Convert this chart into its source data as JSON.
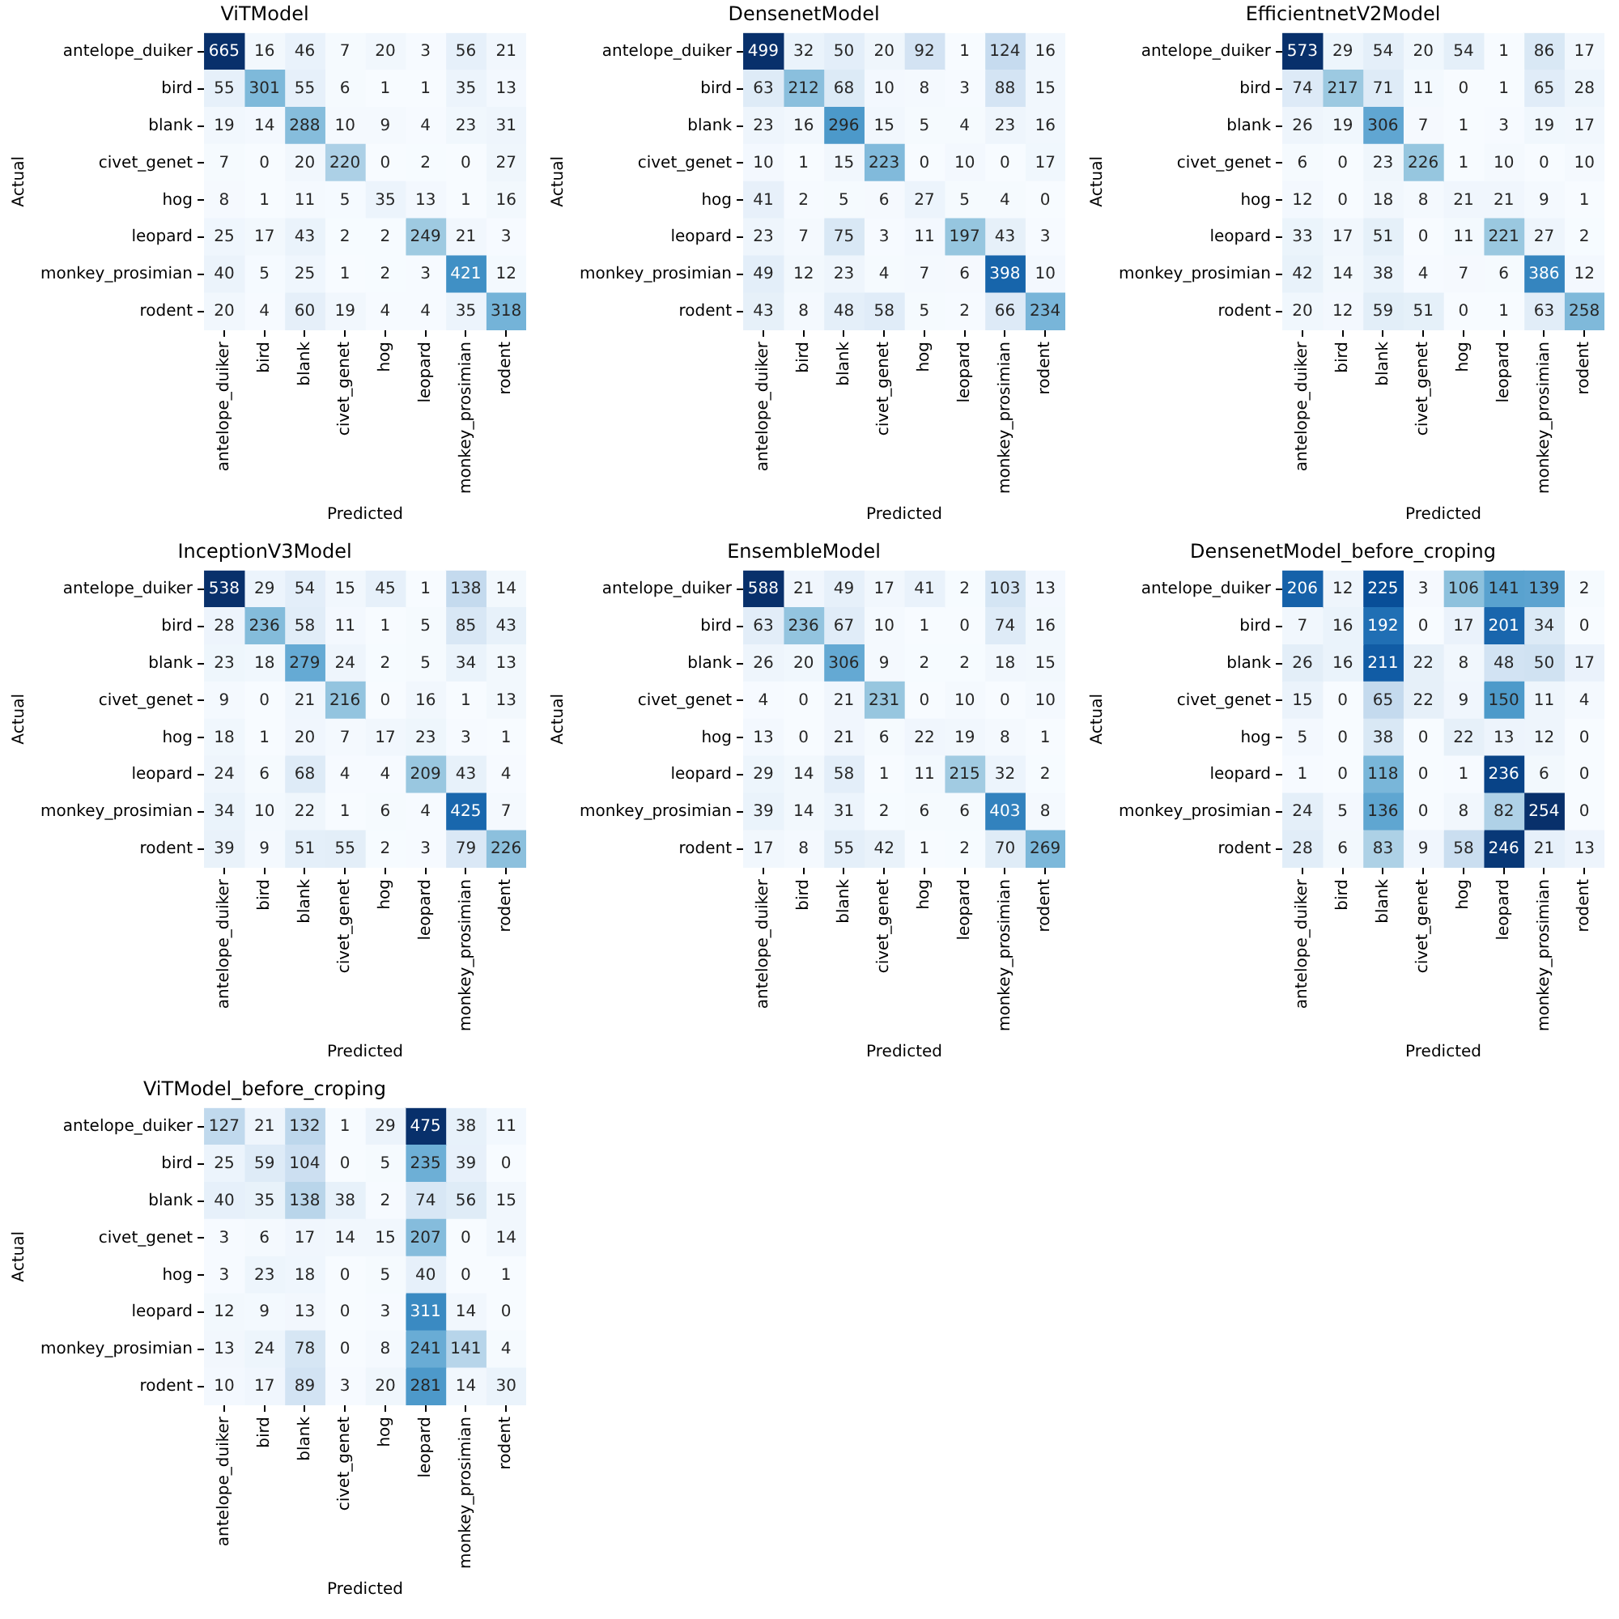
{
  "chart_data": [
    {
      "type": "heatmap",
      "title": "ViTModel",
      "xlabel": "Predicted",
      "ylabel": "Actual",
      "data_labels": true,
      "categories": [
        "antelope_duiker",
        "bird",
        "blank",
        "civet_genet",
        "hog",
        "leopard",
        "monkey_prosimian",
        "rodent"
      ],
      "y_categories": [
        "antelope_duiker",
        "bird",
        "blank",
        "civet_genet",
        "hog",
        "leopard",
        "monkey_prosimian",
        "rodent"
      ],
      "cells": [
        [
          665,
          16,
          46,
          7,
          20,
          3,
          56,
          21
        ],
        [
          55,
          301,
          55,
          6,
          1,
          1,
          35,
          13
        ],
        [
          19,
          14,
          288,
          10,
          9,
          4,
          23,
          31
        ],
        [
          7,
          0,
          20,
          220,
          0,
          2,
          0,
          27
        ],
        [
          8,
          1,
          11,
          5,
          35,
          13,
          1,
          16
        ],
        [
          25,
          17,
          43,
          2,
          2,
          249,
          21,
          3
        ],
        [
          40,
          5,
          25,
          1,
          2,
          3,
          421,
          12
        ],
        [
          20,
          4,
          60,
          19,
          4,
          4,
          35,
          318
        ]
      ]
    },
    {
      "type": "heatmap",
      "title": "DensenetModel",
      "xlabel": "Predicted",
      "ylabel": "Actual",
      "data_labels": true,
      "categories": [
        "antelope_duiker",
        "bird",
        "blank",
        "civet_genet",
        "hog",
        "leopard",
        "monkey_prosimian",
        "rodent"
      ],
      "y_categories": [
        "antelope_duiker",
        "bird",
        "blank",
        "civet_genet",
        "hog",
        "leopard",
        "monkey_prosimian",
        "rodent"
      ],
      "cells": [
        [
          499,
          32,
          50,
          20,
          92,
          1,
          124,
          16
        ],
        [
          63,
          212,
          68,
          10,
          8,
          3,
          88,
          15
        ],
        [
          23,
          16,
          296,
          15,
          5,
          4,
          23,
          16
        ],
        [
          10,
          1,
          15,
          223,
          0,
          10,
          0,
          17
        ],
        [
          41,
          2,
          5,
          6,
          27,
          5,
          4,
          0
        ],
        [
          23,
          7,
          75,
          3,
          11,
          197,
          43,
          3
        ],
        [
          49,
          12,
          23,
          4,
          7,
          6,
          398,
          10
        ],
        [
          43,
          8,
          48,
          58,
          5,
          2,
          66,
          234
        ]
      ]
    },
    {
      "type": "heatmap",
      "title": "EfficientnetV2Model",
      "xlabel": "Predicted",
      "ylabel": "Actual",
      "data_labels": true,
      "categories": [
        "antelope_duiker",
        "bird",
        "blank",
        "civet_genet",
        "hog",
        "leopard",
        "monkey_prosimian",
        "rodent"
      ],
      "y_categories": [
        "antelope_duiker",
        "bird",
        "blank",
        "civet_genet",
        "hog",
        "leopard",
        "monkey_prosimian",
        "rodent"
      ],
      "cells": [
        [
          573,
          29,
          54,
          20,
          54,
          1,
          86,
          17
        ],
        [
          74,
          217,
          71,
          11,
          0,
          1,
          65,
          28
        ],
        [
          26,
          19,
          306,
          7,
          1,
          3,
          19,
          17
        ],
        [
          6,
          0,
          23,
          226,
          1,
          10,
          0,
          10
        ],
        [
          12,
          0,
          18,
          8,
          21,
          21,
          9,
          1
        ],
        [
          33,
          17,
          51,
          0,
          11,
          221,
          27,
          2
        ],
        [
          42,
          14,
          38,
          4,
          7,
          6,
          386,
          12
        ],
        [
          20,
          12,
          59,
          51,
          0,
          1,
          63,
          258
        ]
      ]
    },
    {
      "type": "heatmap",
      "title": "InceptionV3Model",
      "xlabel": "Predicted",
      "ylabel": "Actual",
      "data_labels": true,
      "categories": [
        "antelope_duiker",
        "bird",
        "blank",
        "civet_genet",
        "hog",
        "leopard",
        "monkey_prosimian",
        "rodent"
      ],
      "y_categories": [
        "antelope_duiker",
        "bird",
        "blank",
        "civet_genet",
        "hog",
        "leopard",
        "monkey_prosimian",
        "rodent"
      ],
      "cells": [
        [
          538,
          29,
          54,
          15,
          45,
          1,
          138,
          14
        ],
        [
          28,
          236,
          58,
          11,
          1,
          5,
          85,
          43
        ],
        [
          23,
          18,
          279,
          24,
          2,
          5,
          34,
          13
        ],
        [
          9,
          0,
          21,
          216,
          0,
          16,
          1,
          13
        ],
        [
          18,
          1,
          20,
          7,
          17,
          23,
          3,
          1
        ],
        [
          24,
          6,
          68,
          4,
          4,
          209,
          43,
          4
        ],
        [
          34,
          10,
          22,
          1,
          6,
          4,
          425,
          7
        ],
        [
          39,
          9,
          51,
          55,
          2,
          3,
          79,
          226
        ]
      ]
    },
    {
      "type": "heatmap",
      "title": "EnsembleModel",
      "xlabel": "Predicted",
      "ylabel": "Actual",
      "data_labels": true,
      "categories": [
        "antelope_duiker",
        "bird",
        "blank",
        "civet_genet",
        "hog",
        "leopard",
        "monkey_prosimian",
        "rodent"
      ],
      "y_categories": [
        "antelope_duiker",
        "bird",
        "blank",
        "civet_genet",
        "hog",
        "leopard",
        "monkey_prosimian",
        "rodent"
      ],
      "cells": [
        [
          588,
          21,
          49,
          17,
          41,
          2,
          103,
          13
        ],
        [
          63,
          236,
          67,
          10,
          1,
          0,
          74,
          16
        ],
        [
          26,
          20,
          306,
          9,
          2,
          2,
          18,
          15
        ],
        [
          4,
          0,
          21,
          231,
          0,
          10,
          0,
          10
        ],
        [
          13,
          0,
          21,
          6,
          22,
          19,
          8,
          1
        ],
        [
          29,
          14,
          58,
          1,
          11,
          215,
          32,
          2
        ],
        [
          39,
          14,
          31,
          2,
          6,
          6,
          403,
          8
        ],
        [
          17,
          8,
          55,
          42,
          1,
          2,
          70,
          269
        ]
      ]
    },
    {
      "type": "heatmap",
      "title": "DensenetModel_before_croping",
      "xlabel": "Predicted",
      "ylabel": "Actual",
      "data_labels": true,
      "categories": [
        "antelope_duiker",
        "bird",
        "blank",
        "civet_genet",
        "hog",
        "leopard",
        "monkey_prosimian",
        "rodent"
      ],
      "y_categories": [
        "antelope_duiker",
        "bird",
        "blank",
        "civet_genet",
        "hog",
        "leopard",
        "monkey_prosimian",
        "rodent"
      ],
      "cells": [
        [
          206,
          12,
          225,
          3,
          106,
          141,
          139,
          2
        ],
        [
          7,
          16,
          192,
          0,
          17,
          201,
          34,
          0
        ],
        [
          26,
          16,
          211,
          22,
          8,
          48,
          50,
          17
        ],
        [
          15,
          0,
          65,
          22,
          9,
          150,
          11,
          4
        ],
        [
          5,
          0,
          38,
          0,
          22,
          13,
          12,
          0
        ],
        [
          1,
          0,
          118,
          0,
          1,
          236,
          6,
          0
        ],
        [
          24,
          5,
          136,
          0,
          8,
          82,
          254,
          0
        ],
        [
          28,
          6,
          83,
          9,
          58,
          246,
          21,
          13
        ]
      ]
    },
    {
      "type": "heatmap",
      "title": "ViTModel_before_croping",
      "xlabel": "Predicted",
      "ylabel": "Actual",
      "data_labels": true,
      "categories": [
        "antelope_duiker",
        "bird",
        "blank",
        "civet_genet",
        "hog",
        "leopard",
        "monkey_prosimian",
        "rodent"
      ],
      "y_categories": [
        "antelope_duiker",
        "bird",
        "blank",
        "civet_genet",
        "hog",
        "leopard",
        "monkey_prosimian",
        "rodent"
      ],
      "cells": [
        [
          127,
          21,
          132,
          1,
          29,
          475,
          38,
          11
        ],
        [
          25,
          59,
          104,
          0,
          5,
          235,
          39,
          0
        ],
        [
          40,
          35,
          138,
          38,
          2,
          74,
          56,
          15
        ],
        [
          3,
          6,
          17,
          14,
          15,
          207,
          0,
          14
        ],
        [
          3,
          23,
          18,
          0,
          5,
          40,
          0,
          1
        ],
        [
          12,
          9,
          13,
          0,
          3,
          311,
          14,
          0
        ],
        [
          13,
          24,
          78,
          0,
          8,
          241,
          141,
          4
        ],
        [
          10,
          17,
          89,
          3,
          20,
          281,
          14,
          30
        ]
      ]
    }
  ]
}
